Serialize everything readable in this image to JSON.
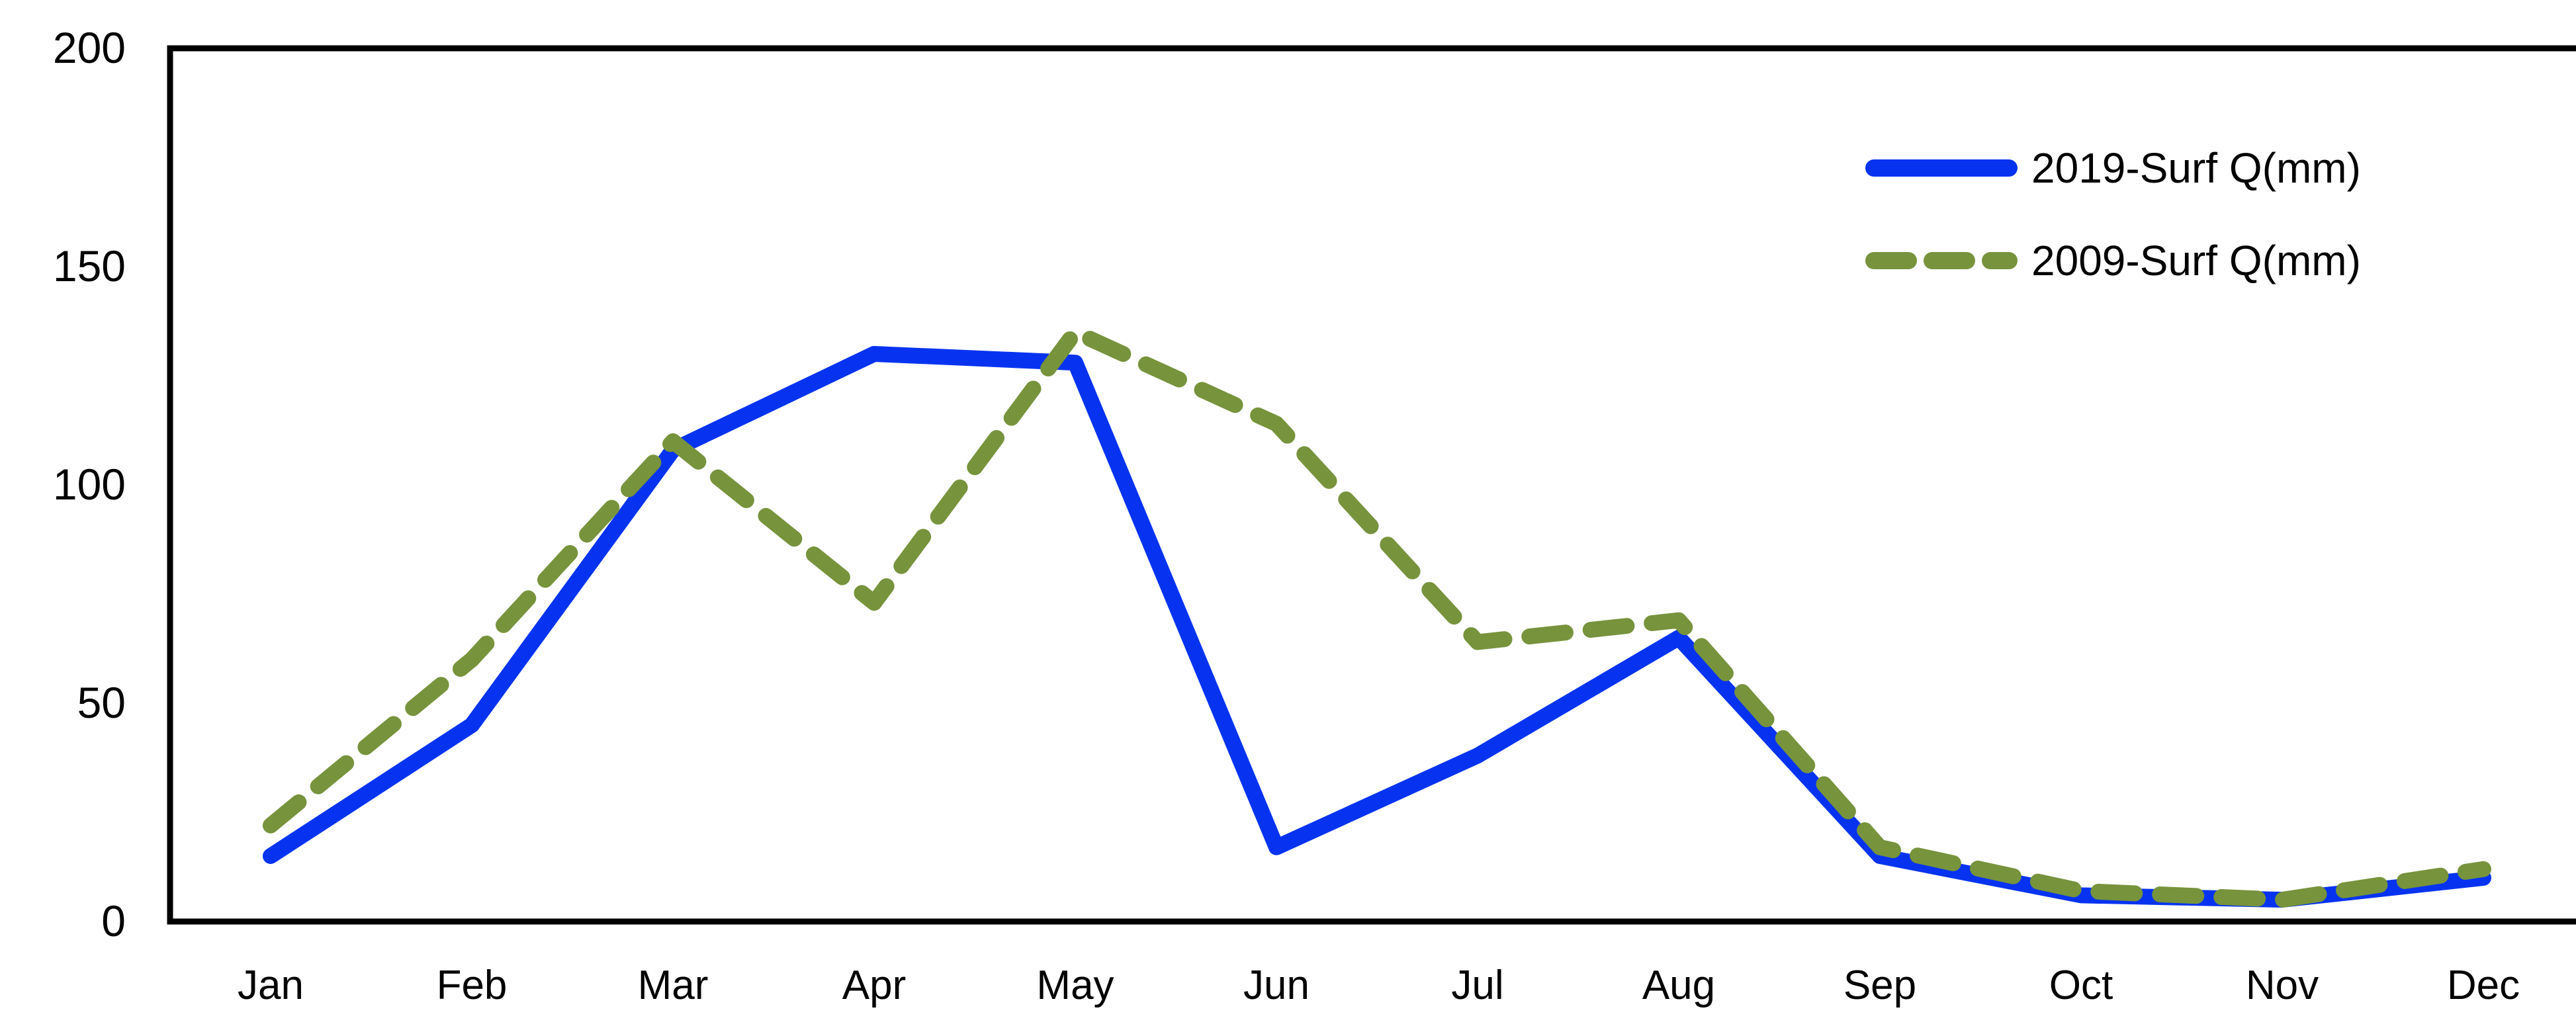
{
  "chart_data": {
    "type": "line",
    "title": "",
    "categories": [
      "Jan",
      "Feb",
      "Mar",
      "Apr",
      "May",
      "Jun",
      "Jul",
      "Aug",
      "Sep",
      "Oct",
      "Nov",
      "Dec"
    ],
    "series": [
      {
        "name": "2019-Surf Q(mm)",
        "color": "#0733f0",
        "line_style": "solid",
        "values": [
          15,
          45,
          108,
          130,
          128,
          17,
          38,
          65,
          15,
          6,
          5,
          10
        ]
      },
      {
        "name": "2009-Surf Q(mm)",
        "color": "#77933C",
        "line_style": "dashed",
        "values": [
          22,
          60,
          110,
          73,
          135,
          114,
          64,
          69,
          17,
          7,
          5,
          12
        ]
      }
    ],
    "xlabel": "",
    "ylabel": "",
    "ylim": [
      0,
      200
    ],
    "yticks": [
      0,
      50,
      100,
      150,
      200
    ],
    "grid": false,
    "legend_position": "top-right",
    "axis_color": "#000000",
    "background_color": "#ffffff"
  }
}
